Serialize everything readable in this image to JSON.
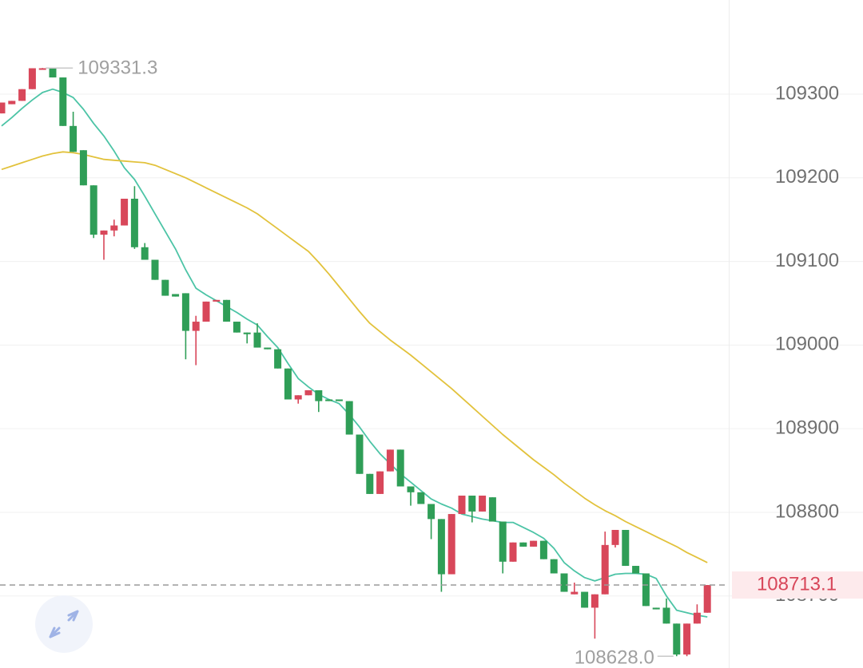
{
  "chart_data": {
    "type": "candlestick",
    "open": [
      109277,
      109288,
      109292,
      109306,
      109330,
      109331,
      109320,
      109262,
      109233,
      109191,
      109132,
      109137,
      109143,
      109175,
      109117,
      109102,
      109078,
      109061,
      109062,
      109017,
      109028,
      109052,
      109054,
      109028,
      109015,
      109015,
      108997,
      108995,
      108972,
      108935,
      108940,
      108946,
      108935,
      108935,
      108933,
      108893,
      108846,
      108822,
      108849,
      108875,
      108831,
      108824,
      108810,
      108792,
      108726,
      108798,
      108820,
      108801,
      108818,
      108789,
      108741,
      108764,
      108759,
      108766,
      108744,
      108727,
      108702,
      108705,
      108686,
      108702,
      108761,
      108779,
      108736,
      108727,
      108686,
      108686,
      108667,
      108630,
      108667,
      108680
    ],
    "high": [
      109290,
      109292,
      109306,
      109331,
      109331.3,
      109331,
      109320,
      109279,
      109233,
      109191,
      109137,
      109150,
      109175,
      109190,
      109122,
      109102,
      109078,
      109061,
      109062,
      109035,
      109052,
      109054,
      109054,
      109028,
      109015,
      109026,
      108997,
      108995,
      108972,
      108940,
      108946,
      108946,
      108935,
      108935,
      108933,
      108893,
      108846,
      108849,
      108875,
      108875,
      108831,
      108824,
      108810,
      108792,
      108798,
      108820,
      108820,
      108820,
      108818,
      108789,
      108764,
      108764,
      108766,
      108766,
      108744,
      108727,
      108716,
      108705,
      108702,
      108777,
      108779,
      108779,
      108736,
      108727,
      108686,
      108697,
      108667,
      108667,
      108690,
      108713.1
    ],
    "low": [
      109277,
      109288,
      109292,
      109306,
      109330,
      109320,
      109262,
      109231,
      109191,
      109128,
      109102,
      109130,
      109143,
      109115,
      109102,
      109078,
      109059,
      109058,
      108983,
      108976,
      109028,
      109052,
      109028,
      109015,
      109002,
      108997,
      108995,
      108972,
      108935,
      108930,
      108940,
      108920,
      108933,
      108933,
      108893,
      108846,
      108822,
      108822,
      108849,
      108831,
      108808,
      108810,
      108768,
      108705,
      108726,
      108798,
      108788,
      108801,
      108789,
      108727,
      108741,
      108759,
      108759,
      108744,
      108727,
      108705,
      108702,
      108686,
      108649,
      108702,
      108758,
      108736,
      108727,
      108688,
      108684,
      108667,
      108628,
      108628,
      108667,
      108680
    ],
    "close": [
      109290,
      109292,
      109306,
      109331,
      109331,
      109320,
      109262,
      109231,
      109191,
      109132,
      109137,
      109143,
      109175,
      109117,
      109102,
      109078,
      109059,
      109058,
      109017,
      109028,
      109052,
      109054,
      109028,
      109015,
      109013,
      108997,
      108995,
      108972,
      108935,
      108940,
      108946,
      108933,
      108933,
      108933,
      108893,
      108846,
      108822,
      108849,
      108875,
      108831,
      108824,
      108810,
      108792,
      108726,
      108798,
      108820,
      108801,
      108820,
      108789,
      108741,
      108764,
      108759,
      108766,
      108744,
      108727,
      108705,
      108705,
      108686,
      108702,
      108761,
      108779,
      108736,
      108727,
      108688,
      108684,
      108667,
      108630,
      108667,
      108680,
      108713.1
    ],
    "up_color": "#d8475a",
    "down_color": "#2f9e57",
    "series": [
      {
        "color": "#4cc4a6",
        "values": [
          109262,
          109272,
          109283,
          109293,
          109302,
          109306,
          109302,
          109296,
          109282,
          109265,
          109250,
          109232,
          109212,
          109198,
          109178,
          109157,
          109136,
          109115,
          109090,
          109068,
          109060,
          109053,
          109046,
          109039,
          109031,
          109024,
          109010,
          108997,
          108978,
          108960,
          108950,
          108941,
          108935,
          108930,
          108917,
          108902,
          108885,
          108870,
          108858,
          108846,
          108836,
          108826,
          108816,
          108810,
          108805,
          108798,
          108795,
          108792,
          108790,
          108788,
          108788,
          108782,
          108776,
          108769,
          108757,
          108740,
          108730,
          108722,
          108718,
          108722,
          108726,
          108727,
          108727,
          108726,
          108721,
          108700,
          108683,
          108680,
          108677,
          108675
        ]
      },
      {
        "color": "#e2c23c",
        "values": [
          109210,
          109214,
          109218,
          109222,
          109226,
          109229,
          109231,
          109230,
          109228,
          109225,
          109222,
          109221,
          109220,
          109219,
          109218,
          109215,
          109210,
          109205,
          109200,
          109194,
          109188,
          109182,
          109176,
          109170,
          109164,
          109157,
          109148,
          109139,
          109130,
          109121,
          109112,
          109099,
          109085,
          109070,
          109055,
          109040,
          109026,
          109016,
          109006,
          108997,
          108988,
          108978,
          108968,
          108958,
          108948,
          108937,
          108926,
          108915,
          108904,
          108893,
          108883,
          108873,
          108863,
          108854,
          108845,
          108835,
          108826,
          108817,
          108809,
          108802,
          108796,
          108789,
          108783,
          108777,
          108771,
          108765,
          108759,
          108752,
          108746,
          108740
        ]
      }
    ],
    "ylim": [
      108613.9,
      109412.6
    ],
    "yticks": [
      108700,
      108800,
      108900,
      109000,
      109100,
      109200,
      109300
    ],
    "grid": true,
    "max_label": {
      "value": 109331.3,
      "label": "109331.3"
    },
    "min_label": {
      "value": 108628.0,
      "label": "108628.0"
    },
    "last_price": 108713.1
  }
}
